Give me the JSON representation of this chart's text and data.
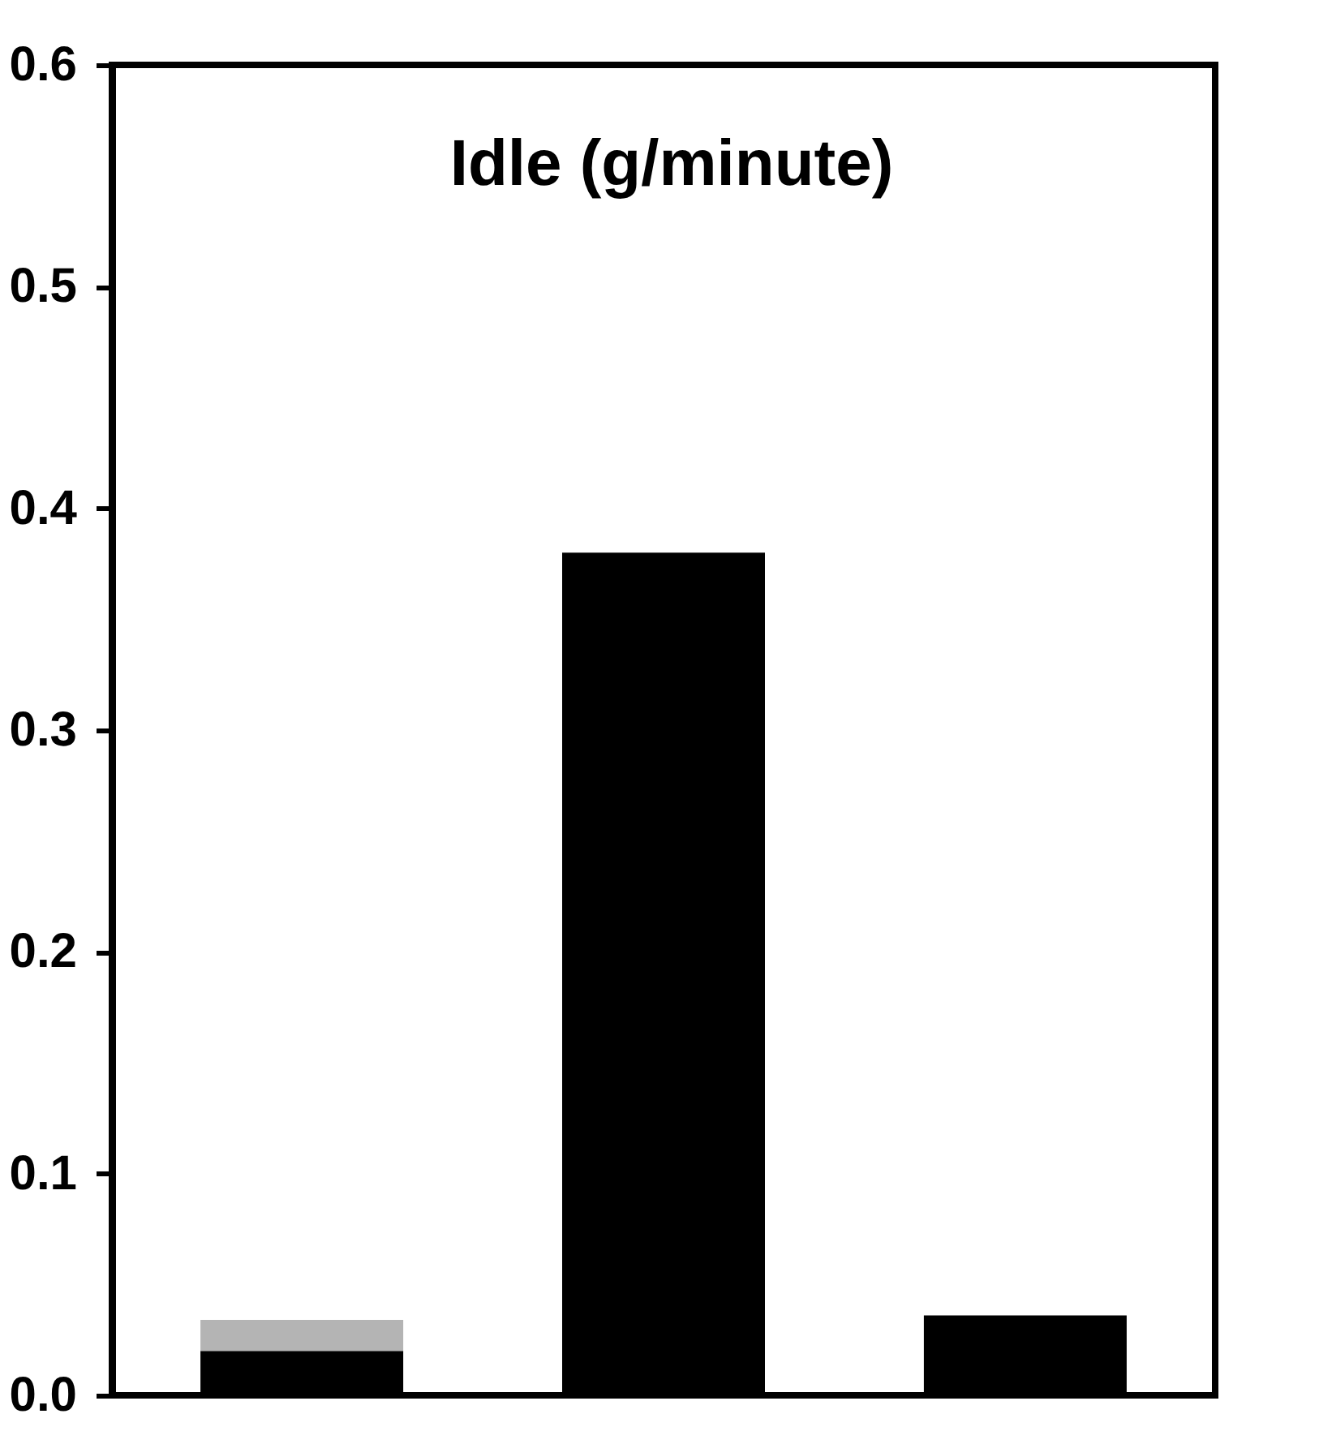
{
  "chart_data": {
    "type": "bar",
    "title": "Idle (g/minute)",
    "stacked": true,
    "categories": [
      null,
      null,
      null
    ],
    "series": [
      {
        "color": "#000000",
        "values": [
          0.02,
          0.38,
          0.036
        ]
      },
      {
        "color": "#b4b4b4",
        "values": [
          0.014,
          null,
          null
        ]
      }
    ],
    "ylim": [
      0,
      0.6
    ],
    "yticks": [
      {
        "value": 0,
        "label": "0.0"
      },
      0.1,
      0.2,
      0.3,
      0.4,
      0.5,
      0.6
    ],
    "grid": false,
    "tick_labels": "y"
  }
}
